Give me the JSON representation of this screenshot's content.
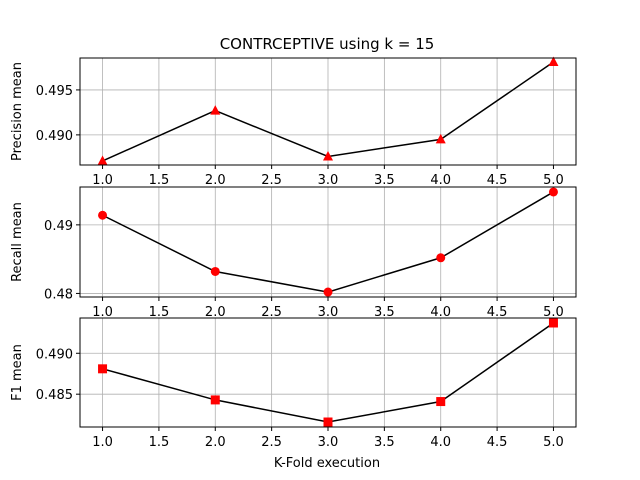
{
  "title": "CONTRCEPTIVE using k = 15",
  "xlabel": "K-Fold execution",
  "chart_data": [
    {
      "type": "line",
      "ylabel": "Precision mean",
      "marker": "triangle",
      "line_color": "#000000",
      "marker_color": "#ff0000",
      "grid": true,
      "x": [
        1,
        2,
        3,
        4,
        5
      ],
      "y": [
        0.4871,
        0.4927,
        0.4876,
        0.4895,
        0.4981
      ],
      "xlim": [
        0.8,
        5.2
      ],
      "ylim": [
        0.48665,
        0.49855
      ],
      "xticks": [
        1.0,
        1.5,
        2.0,
        2.5,
        3.0,
        3.5,
        4.0,
        4.5,
        5.0
      ],
      "xtick_labels": [
        "1.0",
        "1.5",
        "2.0",
        "2.5",
        "3.0",
        "3.5",
        "4.0",
        "4.5",
        "5.0"
      ],
      "yticks": [
        0.49,
        0.495
      ],
      "ytick_labels": [
        "0.490",
        "0.495"
      ]
    },
    {
      "type": "line",
      "ylabel": "Recall mean",
      "marker": "circle",
      "line_color": "#000000",
      "marker_color": "#ff0000",
      "grid": true,
      "x": [
        1,
        2,
        3,
        4,
        5
      ],
      "y": [
        0.4914,
        0.4832,
        0.4802,
        0.4852,
        0.4948
      ],
      "xlim": [
        0.8,
        5.2
      ],
      "ylim": [
        0.47948,
        0.49552
      ],
      "xticks": [
        1.0,
        1.5,
        2.0,
        2.5,
        3.0,
        3.5,
        4.0,
        4.5,
        5.0
      ],
      "xtick_labels": [
        "1.0",
        "1.5",
        "2.0",
        "2.5",
        "3.0",
        "3.5",
        "4.0",
        "4.5",
        "5.0"
      ],
      "yticks": [
        0.48,
        0.49
      ],
      "ytick_labels": [
        "0.48",
        "0.49"
      ]
    },
    {
      "type": "line",
      "ylabel": "F1 mean",
      "marker": "square",
      "line_color": "#000000",
      "marker_color": "#ff0000",
      "grid": true,
      "x": [
        1,
        2,
        3,
        4,
        5
      ],
      "y": [
        0.4881,
        0.4843,
        0.4816,
        0.4841,
        0.4937
      ],
      "xlim": [
        0.8,
        5.2
      ],
      "ylim": [
        0.48099,
        0.49431
      ],
      "xticks": [
        1.0,
        1.5,
        2.0,
        2.5,
        3.0,
        3.5,
        4.0,
        4.5,
        5.0
      ],
      "xtick_labels": [
        "1.0",
        "1.5",
        "2.0",
        "2.5",
        "3.0",
        "3.5",
        "4.0",
        "4.5",
        "5.0"
      ],
      "yticks": [
        0.485,
        0.49
      ],
      "ytick_labels": [
        "0.485",
        "0.490"
      ]
    }
  ]
}
